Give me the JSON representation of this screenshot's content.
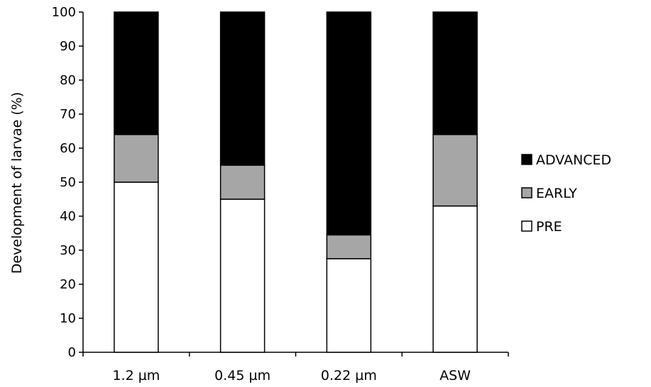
{
  "chart_data": {
    "type": "bar",
    "stacked": true,
    "title": "",
    "xlabel": "",
    "ylabel": "Development of larvae (%)",
    "ylim": [
      0,
      100
    ],
    "yticks": [
      0,
      10,
      20,
      30,
      40,
      50,
      60,
      70,
      80,
      90,
      100
    ],
    "grid": false,
    "legend_position": "right",
    "categories": [
      "1.2 µm",
      "0.45 µm",
      "0.22 µm",
      "ASW"
    ],
    "series": [
      {
        "name": "PRE",
        "color": "#ffffff",
        "values": [
          50,
          45,
          27.5,
          43
        ]
      },
      {
        "name": "EARLY",
        "color": "#a6a6a6",
        "values": [
          14,
          10,
          7,
          21
        ]
      },
      {
        "name": "ADVANCED",
        "color": "#000000",
        "values": [
          36,
          45,
          65.5,
          36
        ]
      }
    ],
    "legend_order": [
      "ADVANCED",
      "EARLY",
      "PRE"
    ]
  }
}
